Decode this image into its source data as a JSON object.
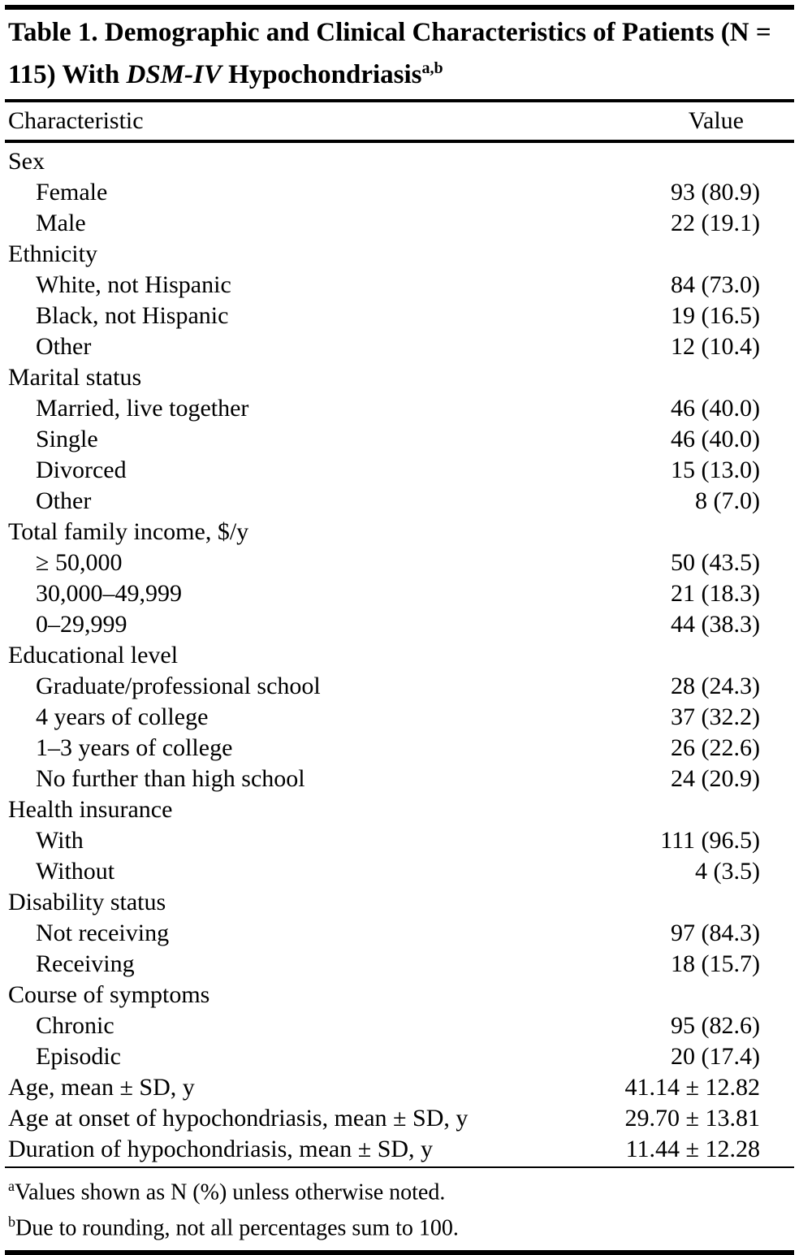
{
  "title": {
    "prefix": "Table 1. Demographic and Clinical Characteristics of Patients (N = 115) With ",
    "italic": "DSM-IV",
    "suffix": " Hypochondriasis",
    "superscript": "a,b"
  },
  "table": {
    "columns": {
      "characteristic": "Characteristic",
      "value": "Value"
    },
    "rows": [
      {
        "label": "Sex",
        "value": "",
        "indent": false
      },
      {
        "label": "Female",
        "value": "93 (80.9)",
        "indent": true
      },
      {
        "label": "Male",
        "value": "22 (19.1)",
        "indent": true
      },
      {
        "label": "Ethnicity",
        "value": "",
        "indent": false
      },
      {
        "label": "White, not Hispanic",
        "value": "84 (73.0)",
        "indent": true
      },
      {
        "label": "Black, not Hispanic",
        "value": "19 (16.5)",
        "indent": true
      },
      {
        "label": "Other",
        "value": "12 (10.4)",
        "indent": true
      },
      {
        "label": "Marital status",
        "value": "",
        "indent": false
      },
      {
        "label": "Married, live together",
        "value": "46 (40.0)",
        "indent": true
      },
      {
        "label": "Single",
        "value": "46 (40.0)",
        "indent": true
      },
      {
        "label": "Divorced",
        "value": "15 (13.0)",
        "indent": true
      },
      {
        "label": "Other",
        "value": "8 (7.0)",
        "indent": true
      },
      {
        "label": "Total family income, $/y",
        "value": "",
        "indent": false
      },
      {
        "label": "≥ 50,000",
        "value": "50 (43.5)",
        "indent": true
      },
      {
        "label": "30,000–49,999",
        "value": "21 (18.3)",
        "indent": true
      },
      {
        "label": "0–29,999",
        "value": "44 (38.3)",
        "indent": true
      },
      {
        "label": "Educational level",
        "value": "",
        "indent": false
      },
      {
        "label": "Graduate/professional school",
        "value": "28 (24.3)",
        "indent": true
      },
      {
        "label": "4 years of college",
        "value": "37 (32.2)",
        "indent": true
      },
      {
        "label": "1–3 years of college",
        "value": "26 (22.6)",
        "indent": true
      },
      {
        "label": "No further than high school",
        "value": "24 (20.9)",
        "indent": true
      },
      {
        "label": "Health insurance",
        "value": "",
        "indent": false
      },
      {
        "label": "With",
        "value": "111 (96.5)",
        "indent": true
      },
      {
        "label": "Without",
        "value": "4 (3.5)",
        "indent": true
      },
      {
        "label": "Disability status",
        "value": "",
        "indent": false
      },
      {
        "label": "Not receiving",
        "value": "97 (84.3)",
        "indent": true
      },
      {
        "label": "Receiving",
        "value": "18 (15.7)",
        "indent": true
      },
      {
        "label": "Course of symptoms",
        "value": "",
        "indent": false
      },
      {
        "label": "Chronic",
        "value": "95 (82.6)",
        "indent": true
      },
      {
        "label": "Episodic",
        "value": "20 (17.4)",
        "indent": true
      },
      {
        "label": "Age, mean ± SD, y",
        "value": "41.14 ± 12.82",
        "indent": false
      },
      {
        "label": "Age at onset of hypochondriasis, mean ± SD, y",
        "value": "29.70 ± 13.81",
        "indent": false
      },
      {
        "label": "Duration of hypochondriasis, mean ± SD, y",
        "value": "11.44 ± 12.28",
        "indent": false
      }
    ]
  },
  "footnotes": [
    {
      "marker": "a",
      "text": "Values shown as N (%) unless otherwise noted."
    },
    {
      "marker": "b",
      "text": "Due to rounding, not all percentages sum to 100."
    }
  ]
}
